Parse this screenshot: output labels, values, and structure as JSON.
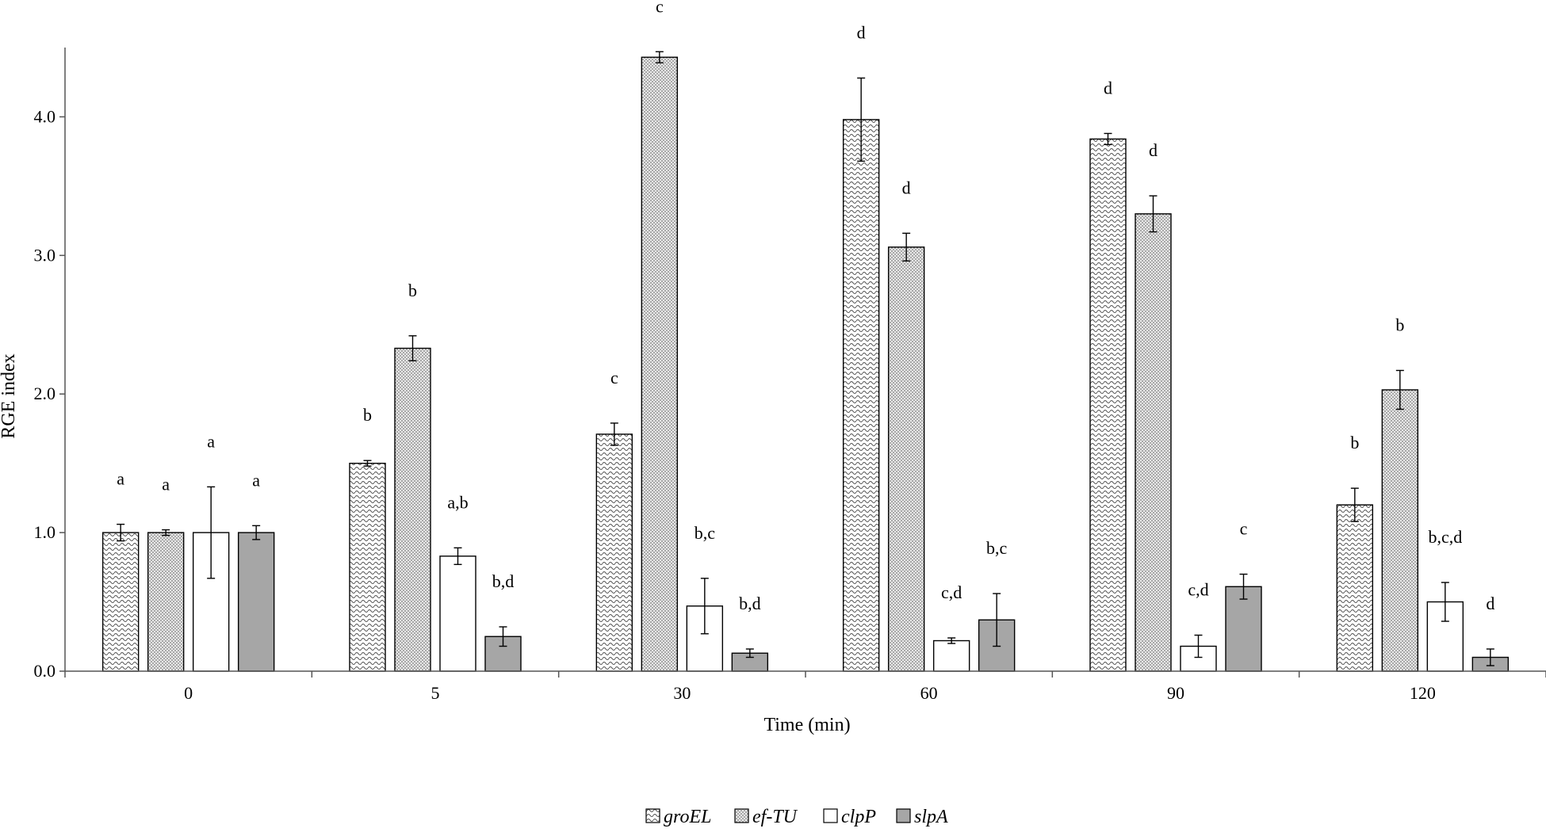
{
  "chart_data": {
    "type": "bar",
    "title": "",
    "xlabel": "Time (min)",
    "ylabel": "RGE index",
    "ylim": [
      0,
      4.5
    ],
    "yticks": [
      "0.0",
      "1.0",
      "2.0",
      "3.0",
      "4.0"
    ],
    "categories": [
      "0",
      "5",
      "30",
      "60",
      "90",
      "120"
    ],
    "legend_position": "bottom-center",
    "series": [
      {
        "name": "groEL",
        "pattern": "wave",
        "values": [
          1.0,
          1.5,
          1.71,
          3.98,
          3.84,
          1.2
        ],
        "errors": [
          0.06,
          0.02,
          0.08,
          0.3,
          0.04,
          0.12
        ],
        "sig": [
          "a",
          "b",
          "c",
          "d",
          "d",
          "b"
        ]
      },
      {
        "name": "ef-TU",
        "pattern": "dots",
        "values": [
          1.0,
          2.33,
          4.43,
          3.06,
          3.3,
          2.03
        ],
        "errors": [
          0.02,
          0.09,
          0.04,
          0.1,
          0.13,
          0.14
        ],
        "sig": [
          "a",
          "b",
          "c",
          "d",
          "d",
          "b"
        ]
      },
      {
        "name": "clpP",
        "pattern": "white",
        "values": [
          1.0,
          0.83,
          0.47,
          0.22,
          0.18,
          0.5
        ],
        "errors": [
          0.33,
          0.06,
          0.2,
          0.02,
          0.08,
          0.14
        ],
        "sig": [
          "a",
          "a,b",
          "b,c",
          "c,d",
          "c,d",
          "b,c,d"
        ]
      },
      {
        "name": "slpA",
        "pattern": "gray",
        "values": [
          1.0,
          0.25,
          0.13,
          0.37,
          0.61,
          0.1
        ],
        "errors": [
          0.05,
          0.07,
          0.03,
          0.19,
          0.09,
          0.06
        ],
        "sig": [
          "a",
          "b,d",
          "b,d",
          "b,c",
          "c",
          "d"
        ]
      }
    ]
  },
  "colors": {
    "axis": "#555555",
    "bar_stroke": "#000000",
    "slpA_fill": "#a6a6a6",
    "clpP_fill": "#ffffff"
  }
}
